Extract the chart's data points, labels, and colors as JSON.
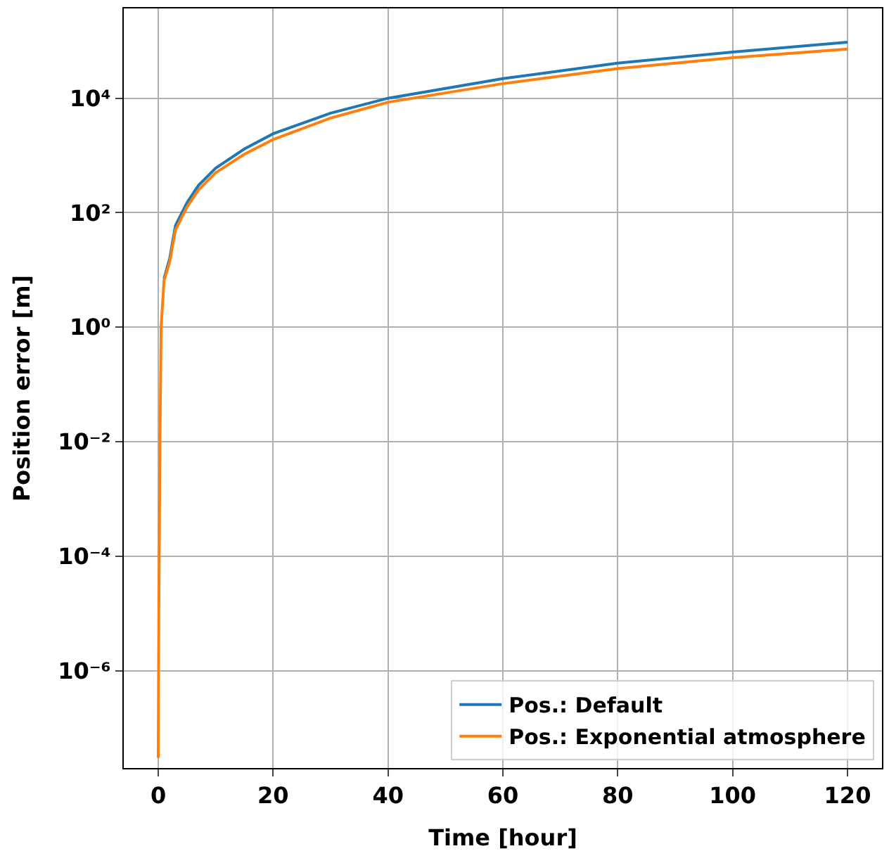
{
  "chart_data": {
    "type": "line",
    "xlabel": "Time [hour]",
    "ylabel": "Position error [m]",
    "log": "y",
    "xlim": [
      -6,
      126
    ],
    "xticks": [
      0,
      20,
      40,
      60,
      80,
      100,
      120
    ],
    "ylim": [
      2e-08,
      370000.0
    ],
    "yticks": [
      {
        "value": 1e-06,
        "label": "10⁻⁶"
      },
      {
        "value": 0.0001,
        "label": "10⁻⁴"
      },
      {
        "value": 0.01,
        "label": "10⁻²"
      },
      {
        "value": 1,
        "label": "10⁰"
      },
      {
        "value": 100,
        "label": "10²"
      },
      {
        "value": 10000,
        "label": "10⁴"
      }
    ],
    "grid": true,
    "legend": "bottom right",
    "line_style": "solid",
    "marker": "none",
    "x": [
      0,
      0.1,
      0.3,
      0.5,
      1,
      2,
      3,
      5,
      7,
      10,
      15,
      20,
      30,
      40,
      60,
      80,
      100,
      120
    ],
    "series": [
      {
        "name": "Pos.: Default",
        "color": "#1f77b4",
        "values": [
          null,
          null,
          null,
          null,
          7,
          16,
          60,
          150,
          300,
          600,
          1300,
          2400,
          5500,
          10000,
          22000,
          41000,
          64000,
          95000
        ]
      },
      {
        "name": "Pos.: Exponential atmosphere",
        "color": "#ff7f0e",
        "values": [
          3e-08,
          1e-05,
          0.01,
          1,
          6.5,
          14,
          50,
          125,
          250,
          500,
          1050,
          1900,
          4500,
          8500,
          18000,
          33000,
          51000,
          72000
        ]
      }
    ]
  }
}
